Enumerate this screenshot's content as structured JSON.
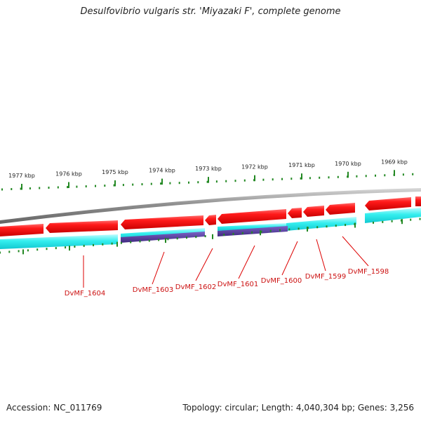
{
  "title": "Desulfovibrio vulgaris str. 'Miyazaki F', complete genome",
  "footer": {
    "accession": "Accession: NC_011769",
    "summary": "Topology: circular; Length: 4,040,304 bp; Genes: 3,256"
  },
  "scale_labels": [
    "1977 kbp",
    "1976 kbp",
    "1975 kbp",
    "1974 kbp",
    "1973 kbp",
    "1972 kbp",
    "1971 kbp",
    "1970 kbp",
    "1969 kbp"
  ],
  "gene_labels": [
    "DvMF_1604",
    "DvMF_1603",
    "DvMF_1602",
    "DvMF_1601",
    "DvMF_1600",
    "DvMF_1599",
    "DvMF_1598"
  ],
  "colors": {
    "backbone": "#888888",
    "gene_forward": "#ee1111",
    "cds_track": "#22eeee",
    "rna_track": "#553399",
    "ticks": "#228822",
    "label": "#cc1111",
    "leader": "#dd0000"
  }
}
